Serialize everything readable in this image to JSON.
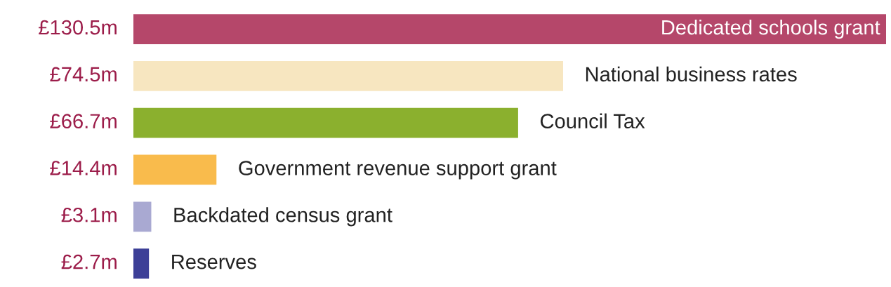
{
  "chart_data": {
    "type": "bar",
    "orientation": "horizontal",
    "categories": [
      "Dedicated schools grant",
      "National business rates",
      "Council Tax",
      "Government revenue support grant",
      "Backdated census grant",
      "Reserves"
    ],
    "values": [
      130.5,
      74.5,
      66.7,
      14.4,
      3.1,
      2.7
    ],
    "colors": [
      "#b5476a",
      "#f7e6c0",
      "#8bb02e",
      "#f9bb4c",
      "#a9a9d2",
      "#3c3f97"
    ],
    "value_labels": [
      "£130.5m",
      "£74.5m",
      "£66.7m",
      "£14.4m",
      "£3.1m",
      "£2.7m"
    ]
  }
}
